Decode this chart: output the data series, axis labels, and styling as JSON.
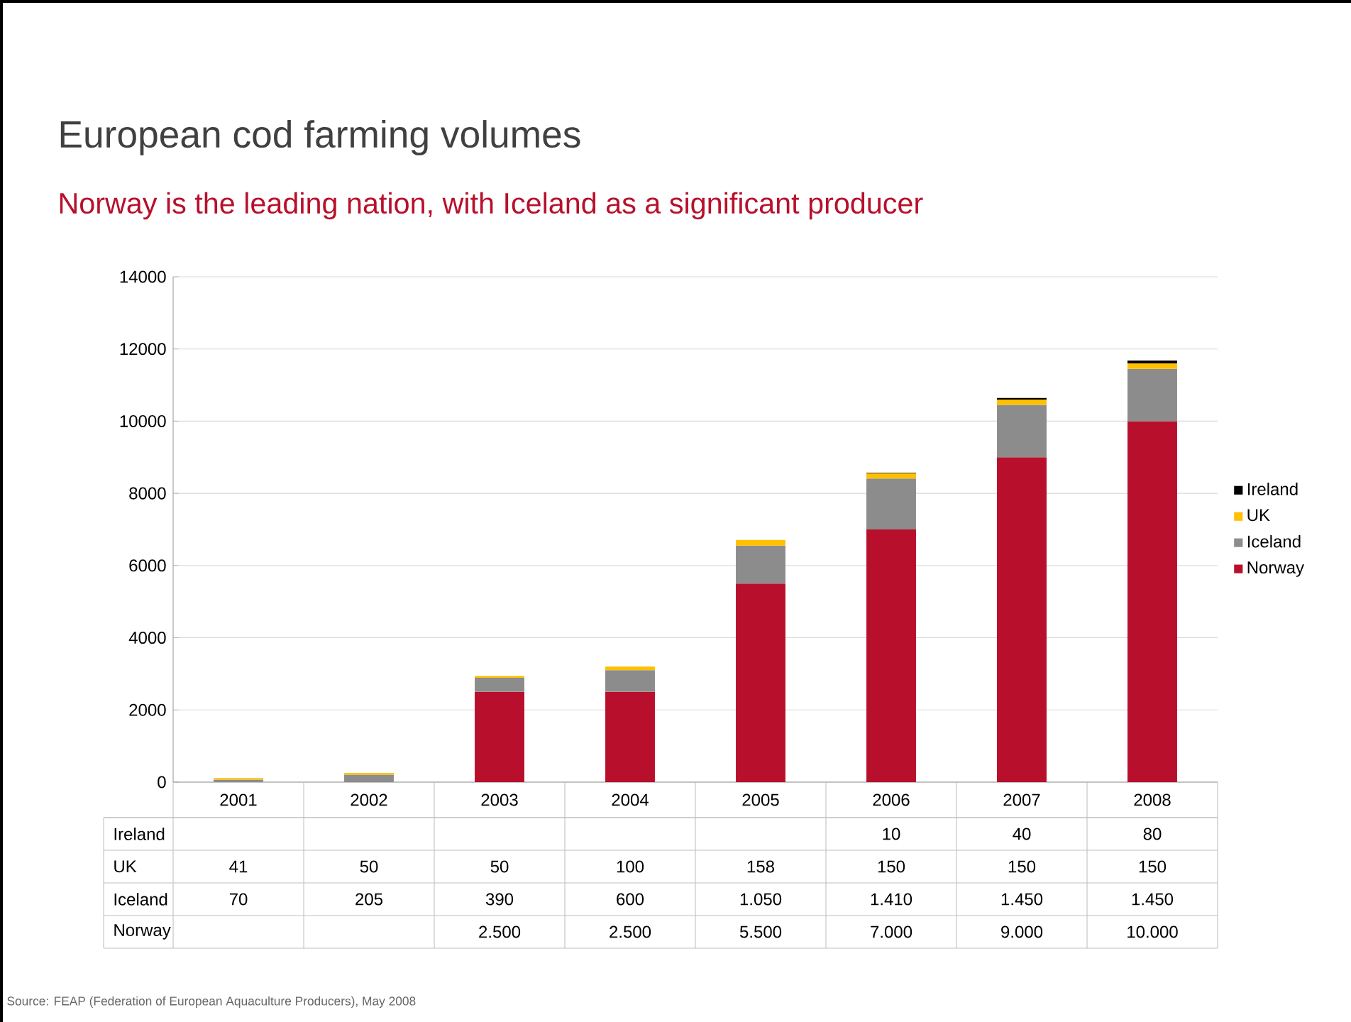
{
  "chart_data": {
    "type": "bar",
    "stacked": true,
    "title": "European cod farming volumes",
    "subtitle": "Norway is the leading nation, with Iceland as a significant producer",
    "annotations": [
      "Source: FEAP (Federation of European Aquaculture Producers), May 2008"
    ],
    "categories": [
      "2001",
      "2002",
      "2003",
      "2004",
      "2005",
      "2006",
      "2007",
      "2008"
    ],
    "series": [
      {
        "name": "Norway",
        "color": "#b8102c",
        "values": [
          null,
          null,
          2500,
          2500,
          5500,
          7000,
          9000,
          10000
        ],
        "value_labels": [
          null,
          null,
          "2.500",
          "2.500",
          "5.500",
          "7.000",
          "9.000",
          "10.000"
        ]
      },
      {
        "name": "Iceland",
        "color": "#8c8c8c",
        "values": [
          70,
          205,
          390,
          600,
          1050,
          1410,
          1450,
          1450
        ],
        "value_labels": [
          "70",
          "205",
          "390",
          "600",
          "1.050",
          "1.410",
          "1.450",
          "1.450"
        ]
      },
      {
        "name": "UK",
        "color": "#ffc000",
        "values": [
          41,
          50,
          50,
          100,
          158,
          150,
          150,
          150
        ],
        "value_labels": [
          "41",
          "50",
          "50",
          "100",
          "158",
          "150",
          "150",
          "150"
        ]
      },
      {
        "name": "Ireland",
        "color": "#000000",
        "values": [
          null,
          null,
          null,
          null,
          null,
          10,
          40,
          80
        ],
        "value_labels": [
          null,
          null,
          null,
          null,
          null,
          "10",
          "40",
          "80"
        ]
      }
    ],
    "ylim": [
      0,
      14000
    ],
    "yticks": [
      0,
      2000,
      4000,
      6000,
      8000,
      10000,
      12000,
      14000
    ],
    "grid": "y",
    "legend": "right"
  }
}
